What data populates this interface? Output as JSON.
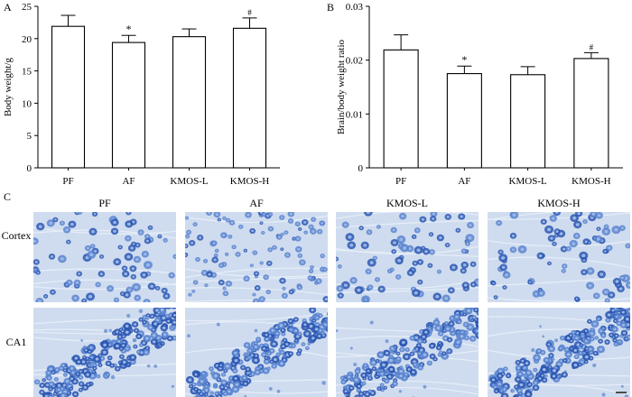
{
  "chart_data": [
    {
      "panel": "A",
      "type": "bar",
      "categories": [
        "PF",
        "AF",
        "KMOS-L",
        "KMOS-H"
      ],
      "values": [
        21.9,
        19.4,
        20.3,
        21.6
      ],
      "errors": [
        1.7,
        1.1,
        1.2,
        1.6
      ],
      "annotations": [
        "",
        "*",
        "",
        "#"
      ],
      "ylabel": "Body weight/g",
      "ylim": [
        0,
        25
      ],
      "yticks": [
        0,
        5,
        10,
        15,
        20,
        25
      ],
      "ytick_labels": [
        "0",
        "5",
        "10",
        "15",
        "20",
        "25"
      ],
      "bar_fill": "#ffffff",
      "bar_stroke": "#000000",
      "grid": false
    },
    {
      "panel": "B",
      "type": "bar",
      "categories": [
        "PF",
        "AF",
        "KMOS-L",
        "KMOS-H"
      ],
      "values": [
        0.0219,
        0.0175,
        0.0173,
        0.0203
      ],
      "errors": [
        0.0028,
        0.0014,
        0.0015,
        0.0011
      ],
      "annotations": [
        "",
        "*",
        "",
        "#"
      ],
      "ylabel": "Brain/body weight ratio",
      "ylim": [
        0,
        0.03
      ],
      "yticks": [
        0,
        0.01,
        0.02,
        0.03
      ],
      "ytick_labels": [
        "0",
        "0.01",
        "0.02",
        "0.03"
      ],
      "bar_fill": "#ffffff",
      "bar_stroke": "#000000",
      "grid": false
    }
  ],
  "micrographs": {
    "panel": "C",
    "columns": [
      "PF",
      "AF",
      "KMOS-L",
      "KMOS-H"
    ],
    "rows": [
      "Cortex",
      "CA1"
    ],
    "colors": {
      "background": "#cfdcef",
      "cell_dark": "#2b57b3",
      "cell_mid": "#5a84cf",
      "cell_light": "#9cb8e6"
    }
  }
}
